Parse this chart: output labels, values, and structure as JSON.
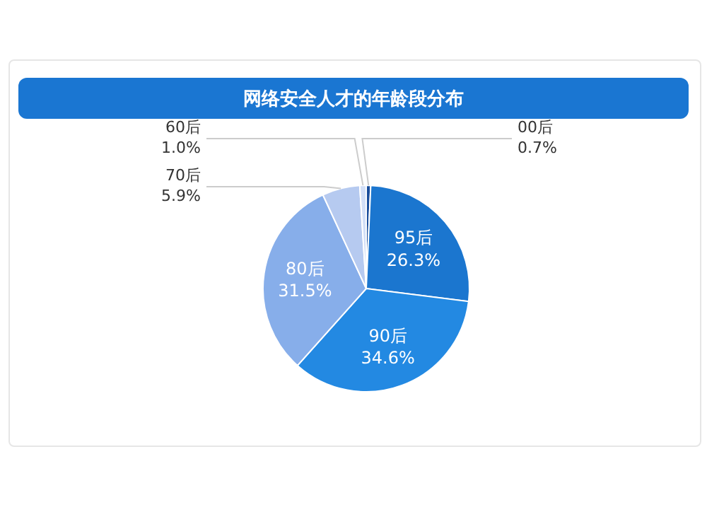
{
  "chart_data": {
    "type": "pie",
    "title": "网络安全人才的年龄段分布",
    "categories": [
      "00后",
      "95后",
      "90后",
      "80后",
      "70后",
      "60后"
    ],
    "values": [
      0.7,
      26.3,
      34.6,
      31.5,
      5.9,
      1.0
    ],
    "value_labels": [
      "0.7%",
      "26.3%",
      "34.6%",
      "31.5%",
      "5.9%",
      "1.0%"
    ],
    "colors": [
      "#1a4e9c",
      "#1b76cf",
      "#2389e2",
      "#87aeea",
      "#b6caf0",
      "#d2dff7"
    ],
    "data_labels": true
  }
}
